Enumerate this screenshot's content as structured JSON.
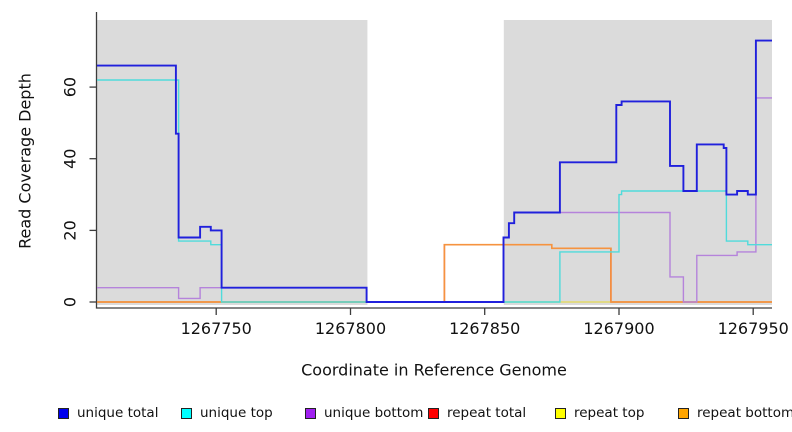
{
  "figure": {
    "xlabel": "Coordinate in Reference Genome",
    "ylabel": "Read Coverage Depth"
  },
  "chart_data": {
    "type": "line",
    "subtype": "step-post",
    "title": "",
    "xlabel": "Coordinate in Reference Genome",
    "ylabel": "Read Coverage Depth",
    "xlim": [
      1267705.6,
      1267957
    ],
    "ylim": [
      0,
      79.3
    ],
    "x_ticks": [
      1267750,
      1267800,
      1267850,
      1267900,
      1267950
    ],
    "y_ticks": [
      0,
      20,
      40,
      60
    ],
    "grid": false,
    "legend_position": "bottom",
    "plot_bg": "#ffffff",
    "shaded_region_color": "#DBDBDB",
    "shaded_regions": [
      {
        "x0": 1267705.6,
        "x1": 1267806.3
      },
      {
        "x0": 1267857.1,
        "x1": 1267957
      }
    ],
    "series": [
      {
        "name": "repeat total",
        "legend_color": "#FF0000",
        "line_color": "#DC1414",
        "line_width": 1.4,
        "steps": [
          [
            1267705.6,
            0
          ],
          [
            1267835,
            16
          ],
          [
            1267875,
            15
          ],
          [
            1267897,
            0
          ]
        ]
      },
      {
        "name": "repeat top",
        "legend_color": "#FFFF00",
        "line_color": "#E3D96B",
        "line_width": 1.4,
        "steps": [
          [
            1267705.6,
            0
          ]
        ]
      },
      {
        "name": "repeat bottom",
        "legend_color": "#FFA500",
        "line_color": "#F6933F",
        "line_width": 1.6,
        "steps": [
          [
            1267705.6,
            0
          ],
          [
            1267835,
            16
          ],
          [
            1267875,
            15
          ],
          [
            1267897,
            0
          ]
        ]
      },
      {
        "name": "unique bottom",
        "legend_color": "#A020F0",
        "line_color": "#B583DB",
        "line_width": 1.4,
        "steps": [
          [
            1267705.6,
            4
          ],
          [
            1267736,
            1
          ],
          [
            1267744,
            4
          ],
          [
            1267806,
            0
          ],
          [
            1267857,
            18
          ],
          [
            1267859,
            22
          ],
          [
            1267861,
            25
          ],
          [
            1267919,
            7
          ],
          [
            1267924,
            0
          ],
          [
            1267929,
            13
          ],
          [
            1267944,
            14
          ],
          [
            1267951,
            57
          ]
        ]
      },
      {
        "name": "unique top",
        "legend_color": "#00FFFF",
        "line_color": "#4FDBDB",
        "line_width": 1.4,
        "steps": [
          [
            1267705.6,
            62
          ],
          [
            1267736,
            17
          ],
          [
            1267748,
            16
          ],
          [
            1267752,
            0
          ],
          [
            1267878,
            14
          ],
          [
            1267900,
            30
          ],
          [
            1267901,
            31
          ],
          [
            1267940,
            17
          ],
          [
            1267948,
            16
          ]
        ]
      },
      {
        "name": "unique total",
        "legend_color": "#0000EE",
        "line_color": "#2020DC",
        "line_width": 1.9,
        "steps": [
          [
            1267705.6,
            66
          ],
          [
            1267735,
            47
          ],
          [
            1267736,
            18
          ],
          [
            1267744,
            21
          ],
          [
            1267748,
            20
          ],
          [
            1267752,
            4
          ],
          [
            1267806,
            0
          ],
          [
            1267857,
            18
          ],
          [
            1267859,
            22
          ],
          [
            1267861,
            25
          ],
          [
            1267878,
            39
          ],
          [
            1267899,
            55
          ],
          [
            1267901,
            56
          ],
          [
            1267919,
            38
          ],
          [
            1267924,
            31
          ],
          [
            1267929,
            44
          ],
          [
            1267939,
            43
          ],
          [
            1267940,
            30
          ],
          [
            1267944,
            31
          ],
          [
            1267948,
            30
          ],
          [
            1267951,
            73
          ]
        ]
      }
    ],
    "legend": [
      {
        "label": "unique total",
        "color": "#0000EE"
      },
      {
        "label": "unique top",
        "color": "#00FFFF"
      },
      {
        "label": "unique bottom",
        "color": "#A020F0"
      },
      {
        "label": "repeat total",
        "color": "#FF0000"
      },
      {
        "label": "repeat top",
        "color": "#FFFF00"
      },
      {
        "label": "repeat bottom",
        "color": "#FFA500"
      }
    ]
  }
}
